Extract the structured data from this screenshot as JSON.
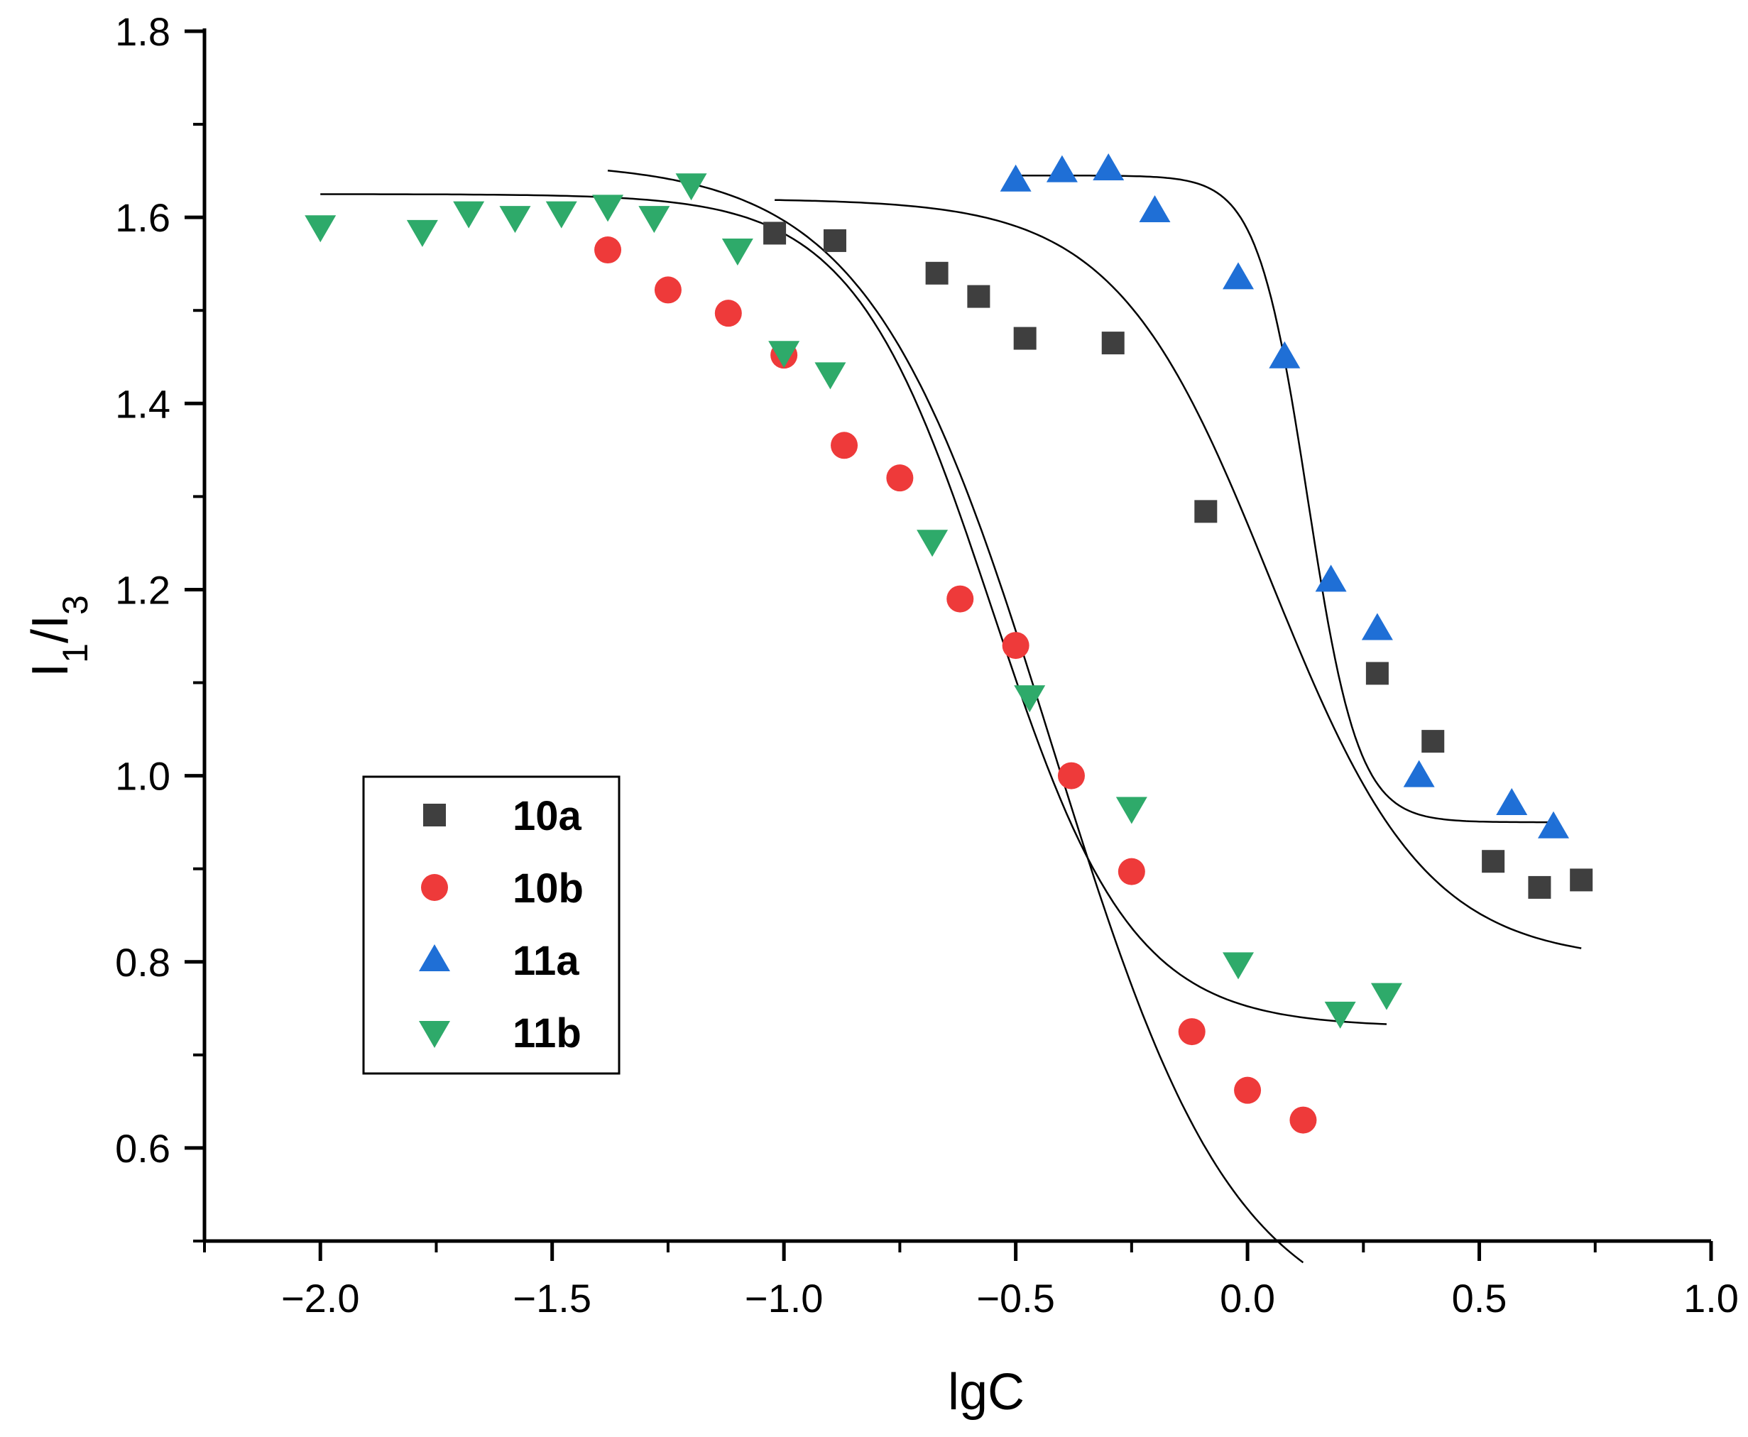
{
  "chart_data": {
    "type": "scatter",
    "title": "",
    "xlabel": "lgC",
    "ylabel": {
      "main": "I",
      "sub1": "1",
      "slash": "/",
      "main2": "I",
      "sub2": "3"
    },
    "xlim": [
      -2.25,
      1.0
    ],
    "ylim": [
      0.5,
      1.8
    ],
    "x_ticks": [
      -2.0,
      -1.5,
      -1.0,
      -0.5,
      0.0,
      0.5,
      1.0
    ],
    "x_tick_labels": [
      "−2.0",
      "−1.5",
      "−1.0",
      "−0.5",
      "0.0",
      "0.5",
      "1.0"
    ],
    "y_ticks": [
      0.6,
      0.8,
      1.0,
      1.2,
      1.4,
      1.6,
      1.8
    ],
    "y_tick_labels": [
      "0.6",
      "0.8",
      "1.0",
      "1.2",
      "1.4",
      "1.6",
      "1.8"
    ],
    "legend_position": "lower-left",
    "grid": false,
    "series": [
      {
        "name": "10a",
        "marker": "square",
        "color": "#3f3f3f",
        "x": [
          -1.02,
          -0.89,
          -0.67,
          -0.58,
          -0.48,
          -0.29,
          -0.09,
          0.28,
          0.4,
          0.53,
          0.63,
          0.72
        ],
        "y": [
          1.583,
          1.575,
          1.54,
          1.515,
          1.47,
          1.465,
          1.284,
          1.11,
          1.037,
          0.908,
          0.88,
          0.888
        ],
        "fit": {
          "top": 1.62,
          "bottom": 0.8,
          "x0": 0.05,
          "slope": 2.6,
          "from": -1.02,
          "to": 0.72
        }
      },
      {
        "name": "10b",
        "marker": "circle",
        "color": "#ee3a3a",
        "x": [
          -1.38,
          -1.25,
          -1.12,
          -1.0,
          -0.87,
          -0.75,
          -0.62,
          -0.5,
          -0.38,
          -0.25,
          -0.12,
          0.0,
          0.12
        ],
        "y": [
          1.565,
          1.522,
          1.497,
          1.452,
          1.355,
          1.32,
          1.19,
          1.14,
          1.0,
          0.897,
          0.725,
          0.662,
          0.63
        ],
        "fit": {
          "top": 1.66,
          "bottom": 0.4,
          "x0": -0.42,
          "slope": 2.2,
          "from": -1.38,
          "to": 0.12
        }
      },
      {
        "name": "11a",
        "marker": "triangle-up",
        "color": "#1f6fd6",
        "x": [
          -0.5,
          -0.4,
          -0.3,
          -0.2,
          -0.02,
          0.08,
          0.18,
          0.28,
          0.37,
          0.57,
          0.66
        ],
        "y": [
          1.64,
          1.65,
          1.652,
          1.607,
          1.535,
          1.45,
          1.21,
          1.158,
          1.0,
          0.97,
          0.945
        ],
        "fit": {
          "top": 1.645,
          "bottom": 0.95,
          "x0": 0.13,
          "slope": 8.0,
          "from": -0.5,
          "to": 0.66
        }
      },
      {
        "name": "11b",
        "marker": "triangle-down",
        "color": "#2eaa6a",
        "x": [
          -2.0,
          -1.78,
          -1.68,
          -1.58,
          -1.48,
          -1.38,
          -1.28,
          -1.2,
          -1.1,
          -1.0,
          -0.9,
          -0.68,
          -0.47,
          -0.25,
          -0.02,
          0.2,
          0.3
        ],
        "y": [
          1.59,
          1.585,
          1.605,
          1.6,
          1.605,
          1.612,
          1.6,
          1.635,
          1.565,
          1.455,
          1.432,
          1.252,
          1.085,
          0.965,
          0.798,
          0.745,
          0.765
        ],
        "fit": {
          "top": 1.625,
          "bottom": 0.73,
          "x0": -0.55,
          "slope": 2.9,
          "from": -2.0,
          "to": 0.3
        }
      }
    ]
  }
}
